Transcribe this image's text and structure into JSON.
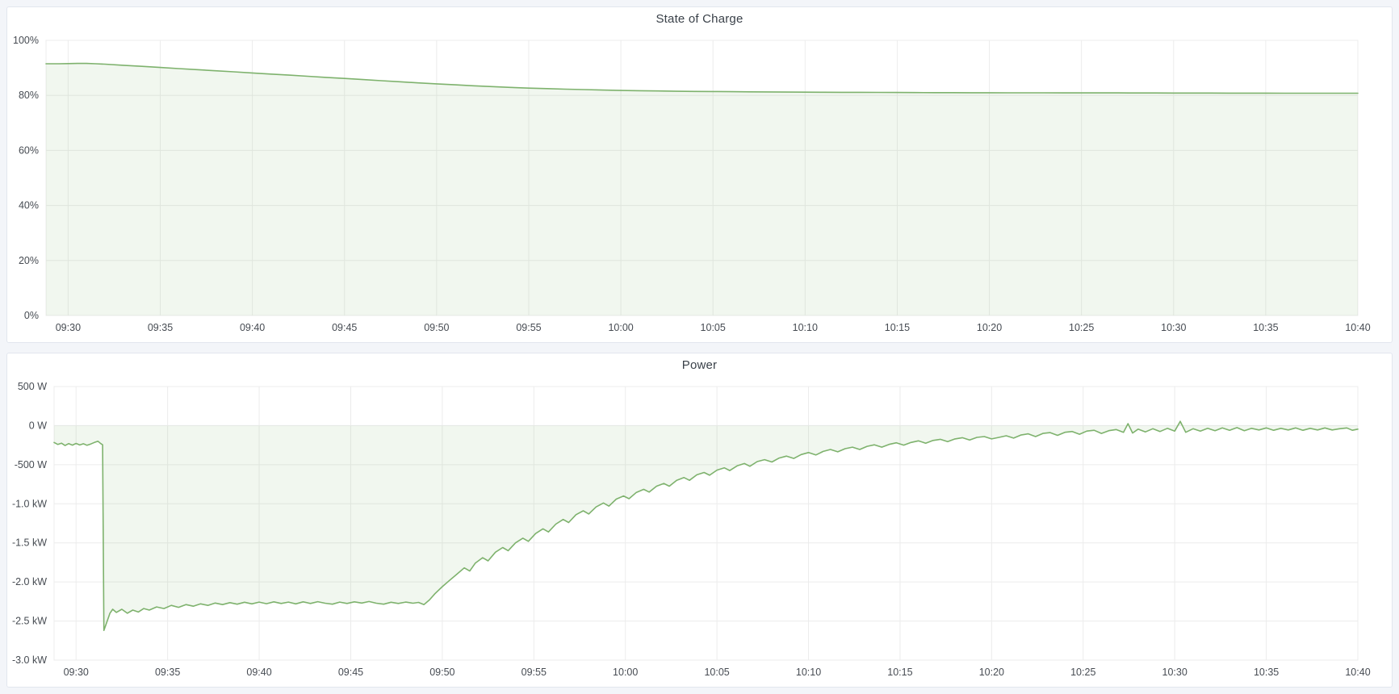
{
  "page": {
    "background": "#f3f5f9",
    "theme": {
      "panel_background": "#ffffff",
      "panel_border": "#e2e6ee",
      "grid_color": "#ececec",
      "tick_text_color": "#464b52",
      "title_color": "#3a4149"
    }
  },
  "panels": [
    {
      "title": "State of Charge"
    },
    {
      "title": "Power"
    }
  ],
  "chart_data": [
    {
      "type": "area",
      "title": "State of Charge",
      "unit": "%",
      "legend_position": "none",
      "grid": true,
      "line_color": "#7eb26d",
      "fill_color": "rgba(126,178,109,0.11)",
      "x_range_minutes": [
        28.8,
        100
      ],
      "xlabel": "",
      "ylabel": "",
      "ylim": [
        0,
        100
      ],
      "baseline": 0,
      "y_ticks": [
        {
          "v": 0,
          "label": "0%"
        },
        {
          "v": 20,
          "label": "20%"
        },
        {
          "v": 40,
          "label": "40%"
        },
        {
          "v": 60,
          "label": "60%"
        },
        {
          "v": 80,
          "label": "80%"
        },
        {
          "v": 100,
          "label": "100%"
        }
      ],
      "x_ticks": [
        {
          "t": 30,
          "label": "09:30"
        },
        {
          "t": 35,
          "label": "09:35"
        },
        {
          "t": 40,
          "label": "09:40"
        },
        {
          "t": 45,
          "label": "09:45"
        },
        {
          "t": 50,
          "label": "09:50"
        },
        {
          "t": 55,
          "label": "09:55"
        },
        {
          "t": 60,
          "label": "10:00"
        },
        {
          "t": 65,
          "label": "10:05"
        },
        {
          "t": 70,
          "label": "10:10"
        },
        {
          "t": 75,
          "label": "10:15"
        },
        {
          "t": 80,
          "label": "10:20"
        },
        {
          "t": 85,
          "label": "10:25"
        },
        {
          "t": 90,
          "label": "10:30"
        },
        {
          "t": 95,
          "label": "10:35"
        },
        {
          "t": 100,
          "label": "10:40"
        }
      ],
      "points": [
        [
          28.8,
          91.5
        ],
        [
          29.5,
          91.5
        ],
        [
          30,
          91.55
        ],
        [
          30.5,
          91.6
        ],
        [
          31,
          91.6
        ],
        [
          31.5,
          91.5
        ],
        [
          32,
          91.35
        ],
        [
          33,
          90.95
        ],
        [
          34,
          90.55
        ],
        [
          35,
          90.15
        ],
        [
          36,
          89.75
        ],
        [
          37,
          89.35
        ],
        [
          38,
          88.95
        ],
        [
          39,
          88.55
        ],
        [
          40,
          88.15
        ],
        [
          41,
          87.75
        ],
        [
          42,
          87.35
        ],
        [
          43,
          86.95
        ],
        [
          44,
          86.55
        ],
        [
          45,
          86.15
        ],
        [
          46,
          85.75
        ],
        [
          47,
          85.35
        ],
        [
          48,
          84.95
        ],
        [
          49,
          84.55
        ],
        [
          50,
          84.2
        ],
        [
          51,
          83.85
        ],
        [
          52,
          83.5
        ],
        [
          53,
          83.2
        ],
        [
          54,
          82.9
        ],
        [
          55,
          82.65
        ],
        [
          56,
          82.45
        ],
        [
          57,
          82.25
        ],
        [
          58,
          82.1
        ],
        [
          59,
          81.95
        ],
        [
          60,
          81.8
        ],
        [
          61,
          81.7
        ],
        [
          62,
          81.6
        ],
        [
          63,
          81.5
        ],
        [
          64,
          81.45
        ],
        [
          65,
          81.4
        ],
        [
          66,
          81.35
        ],
        [
          67,
          81.3
        ],
        [
          68,
          81.25
        ],
        [
          69,
          81.2
        ],
        [
          70,
          81.18
        ],
        [
          71,
          81.15
        ],
        [
          72,
          81.12
        ],
        [
          73,
          81.1
        ],
        [
          74,
          81.08
        ],
        [
          75,
          81.05
        ],
        [
          76,
          81.03
        ],
        [
          77,
          81.0
        ],
        [
          78,
          81.0
        ],
        [
          79,
          80.98
        ],
        [
          80,
          80.97
        ],
        [
          81,
          80.95
        ],
        [
          82,
          80.95
        ],
        [
          83,
          80.93
        ],
        [
          84,
          80.92
        ],
        [
          85,
          80.9
        ],
        [
          86,
          80.9
        ],
        [
          87,
          80.9
        ],
        [
          88,
          80.88
        ],
        [
          89,
          80.87
        ],
        [
          90,
          80.85
        ],
        [
          91,
          80.85
        ],
        [
          92,
          80.85
        ],
        [
          93,
          80.83
        ],
        [
          94,
          80.82
        ],
        [
          95,
          80.82
        ],
        [
          96,
          80.8
        ],
        [
          97,
          80.8
        ],
        [
          98,
          80.8
        ],
        [
          99,
          80.8
        ],
        [
          100,
          80.8
        ]
      ]
    },
    {
      "type": "area",
      "title": "Power",
      "unit": "W",
      "legend_position": "none",
      "grid": true,
      "line_color": "#7eb26d",
      "fill_color": "rgba(126,178,109,0.11)",
      "x_range_minutes": [
        28.8,
        100
      ],
      "xlabel": "",
      "ylabel": "",
      "ylim": [
        -3000,
        500
      ],
      "baseline": 0,
      "y_ticks": [
        {
          "v": 500,
          "label": "500 W"
        },
        {
          "v": 0,
          "label": "0 W"
        },
        {
          "v": -500,
          "label": "-500 W"
        },
        {
          "v": -1000,
          "label": "-1.0 kW"
        },
        {
          "v": -1500,
          "label": "-1.5 kW"
        },
        {
          "v": -2000,
          "label": "-2.0 kW"
        },
        {
          "v": -2500,
          "label": "-2.5 kW"
        },
        {
          "v": -3000,
          "label": "-3.0 kW"
        }
      ],
      "x_ticks": [
        {
          "t": 30,
          "label": "09:30"
        },
        {
          "t": 35,
          "label": "09:35"
        },
        {
          "t": 40,
          "label": "09:40"
        },
        {
          "t": 45,
          "label": "09:45"
        },
        {
          "t": 50,
          "label": "09:50"
        },
        {
          "t": 55,
          "label": "09:55"
        },
        {
          "t": 60,
          "label": "10:00"
        },
        {
          "t": 65,
          "label": "10:05"
        },
        {
          "t": 70,
          "label": "10:10"
        },
        {
          "t": 75,
          "label": "10:15"
        },
        {
          "t": 80,
          "label": "10:20"
        },
        {
          "t": 85,
          "label": "10:25"
        },
        {
          "t": 90,
          "label": "10:30"
        },
        {
          "t": 95,
          "label": "10:35"
        },
        {
          "t": 100,
          "label": "10:40"
        }
      ],
      "points": [
        [
          28.8,
          -215
        ],
        [
          29.0,
          -240
        ],
        [
          29.2,
          -225
        ],
        [
          29.4,
          -255
        ],
        [
          29.6,
          -230
        ],
        [
          29.8,
          -250
        ],
        [
          30.0,
          -228
        ],
        [
          30.2,
          -248
        ],
        [
          30.4,
          -232
        ],
        [
          30.6,
          -252
        ],
        [
          30.8,
          -235
        ],
        [
          31.0,
          -215
        ],
        [
          31.2,
          -200
        ],
        [
          31.35,
          -230
        ],
        [
          31.45,
          -245
        ],
        [
          31.52,
          -2620
        ],
        [
          31.7,
          -2500
        ],
        [
          31.85,
          -2400
        ],
        [
          32.0,
          -2350
        ],
        [
          32.2,
          -2390
        ],
        [
          32.5,
          -2350
        ],
        [
          32.8,
          -2400
        ],
        [
          33.1,
          -2360
        ],
        [
          33.4,
          -2385
        ],
        [
          33.7,
          -2340
        ],
        [
          34.0,
          -2360
        ],
        [
          34.4,
          -2320
        ],
        [
          34.8,
          -2340
        ],
        [
          35.2,
          -2300
        ],
        [
          35.6,
          -2325
        ],
        [
          36.0,
          -2290
        ],
        [
          36.4,
          -2310
        ],
        [
          36.8,
          -2280
        ],
        [
          37.2,
          -2300
        ],
        [
          37.6,
          -2270
        ],
        [
          38.0,
          -2290
        ],
        [
          38.4,
          -2265
        ],
        [
          38.8,
          -2285
        ],
        [
          39.2,
          -2260
        ],
        [
          39.6,
          -2280
        ],
        [
          40.0,
          -2258
        ],
        [
          40.4,
          -2278
        ],
        [
          40.8,
          -2255
        ],
        [
          41.2,
          -2275
        ],
        [
          41.6,
          -2258
        ],
        [
          42.0,
          -2280
        ],
        [
          42.4,
          -2255
        ],
        [
          42.8,
          -2275
        ],
        [
          43.2,
          -2252
        ],
        [
          43.6,
          -2272
        ],
        [
          44.0,
          -2285
        ],
        [
          44.4,
          -2258
        ],
        [
          44.8,
          -2275
        ],
        [
          45.2,
          -2255
        ],
        [
          45.6,
          -2270
        ],
        [
          46.0,
          -2250
        ],
        [
          46.4,
          -2272
        ],
        [
          46.8,
          -2285
        ],
        [
          47.2,
          -2260
        ],
        [
          47.6,
          -2275
        ],
        [
          48.0,
          -2258
        ],
        [
          48.4,
          -2272
        ],
        [
          48.7,
          -2262
        ],
        [
          49.0,
          -2290
        ],
        [
          49.3,
          -2230
        ],
        [
          49.6,
          -2150
        ],
        [
          50.0,
          -2060
        ],
        [
          50.4,
          -1980
        ],
        [
          50.8,
          -1900
        ],
        [
          51.2,
          -1820
        ],
        [
          51.5,
          -1860
        ],
        [
          51.8,
          -1760
        ],
        [
          52.2,
          -1690
        ],
        [
          52.5,
          -1730
        ],
        [
          52.9,
          -1620
        ],
        [
          53.3,
          -1560
        ],
        [
          53.6,
          -1600
        ],
        [
          54.0,
          -1500
        ],
        [
          54.4,
          -1440
        ],
        [
          54.7,
          -1480
        ],
        [
          55.1,
          -1380
        ],
        [
          55.5,
          -1320
        ],
        [
          55.8,
          -1360
        ],
        [
          56.2,
          -1260
        ],
        [
          56.6,
          -1200
        ],
        [
          56.9,
          -1240
        ],
        [
          57.3,
          -1140
        ],
        [
          57.7,
          -1090
        ],
        [
          58.0,
          -1130
        ],
        [
          58.4,
          -1040
        ],
        [
          58.8,
          -990
        ],
        [
          59.1,
          -1030
        ],
        [
          59.5,
          -940
        ],
        [
          59.9,
          -900
        ],
        [
          60.2,
          -935
        ],
        [
          60.6,
          -855
        ],
        [
          61.0,
          -815
        ],
        [
          61.3,
          -850
        ],
        [
          61.7,
          -775
        ],
        [
          62.1,
          -740
        ],
        [
          62.4,
          -775
        ],
        [
          62.8,
          -700
        ],
        [
          63.2,
          -665
        ],
        [
          63.5,
          -700
        ],
        [
          63.9,
          -630
        ],
        [
          64.3,
          -600
        ],
        [
          64.6,
          -635
        ],
        [
          65.0,
          -570
        ],
        [
          65.4,
          -540
        ],
        [
          65.7,
          -575
        ],
        [
          66.1,
          -515
        ],
        [
          66.5,
          -485
        ],
        [
          66.8,
          -520
        ],
        [
          67.2,
          -460
        ],
        [
          67.6,
          -435
        ],
        [
          68.0,
          -465
        ],
        [
          68.4,
          -415
        ],
        [
          68.8,
          -390
        ],
        [
          69.2,
          -420
        ],
        [
          69.6,
          -370
        ],
        [
          70.0,
          -345
        ],
        [
          70.4,
          -375
        ],
        [
          70.8,
          -330
        ],
        [
          71.2,
          -305
        ],
        [
          71.6,
          -335
        ],
        [
          72.0,
          -295
        ],
        [
          72.4,
          -275
        ],
        [
          72.8,
          -305
        ],
        [
          73.2,
          -265
        ],
        [
          73.6,
          -245
        ],
        [
          74.0,
          -275
        ],
        [
          74.4,
          -240
        ],
        [
          74.8,
          -220
        ],
        [
          75.2,
          -250
        ],
        [
          75.6,
          -215
        ],
        [
          76.0,
          -195
        ],
        [
          76.4,
          -225
        ],
        [
          76.8,
          -190
        ],
        [
          77.2,
          -175
        ],
        [
          77.6,
          -205
        ],
        [
          78.0,
          -170
        ],
        [
          78.4,
          -155
        ],
        [
          78.8,
          -185
        ],
        [
          79.2,
          -150
        ],
        [
          79.6,
          -140
        ],
        [
          80.0,
          -170
        ],
        [
          80.4,
          -150
        ],
        [
          80.8,
          -130
        ],
        [
          81.2,
          -160
        ],
        [
          81.6,
          -120
        ],
        [
          82.0,
          -105
        ],
        [
          82.4,
          -140
        ],
        [
          82.8,
          -100
        ],
        [
          83.2,
          -90
        ],
        [
          83.6,
          -125
        ],
        [
          84.0,
          -85
        ],
        [
          84.4,
          -75
        ],
        [
          84.8,
          -110
        ],
        [
          85.2,
          -70
        ],
        [
          85.6,
          -60
        ],
        [
          86.0,
          -100
        ],
        [
          86.4,
          -65
        ],
        [
          86.8,
          -50
        ],
        [
          87.2,
          -85
        ],
        [
          87.45,
          25
        ],
        [
          87.7,
          -95
        ],
        [
          88.0,
          -45
        ],
        [
          88.4,
          -80
        ],
        [
          88.8,
          -40
        ],
        [
          89.2,
          -75
        ],
        [
          89.6,
          -35
        ],
        [
          90.0,
          -70
        ],
        [
          90.3,
          55
        ],
        [
          90.6,
          -85
        ],
        [
          91.0,
          -40
        ],
        [
          91.4,
          -70
        ],
        [
          91.8,
          -35
        ],
        [
          92.2,
          -65
        ],
        [
          92.6,
          -30
        ],
        [
          93.0,
          -60
        ],
        [
          93.4,
          -25
        ],
        [
          93.8,
          -65
        ],
        [
          94.2,
          -35
        ],
        [
          94.6,
          -55
        ],
        [
          95.0,
          -30
        ],
        [
          95.4,
          -60
        ],
        [
          95.8,
          -35
        ],
        [
          96.2,
          -55
        ],
        [
          96.6,
          -30
        ],
        [
          97.0,
          -60
        ],
        [
          97.4,
          -35
        ],
        [
          97.8,
          -55
        ],
        [
          98.2,
          -30
        ],
        [
          98.6,
          -55
        ],
        [
          99.0,
          -40
        ],
        [
          99.4,
          -30
        ],
        [
          99.7,
          -60
        ],
        [
          100,
          -45
        ]
      ]
    }
  ]
}
